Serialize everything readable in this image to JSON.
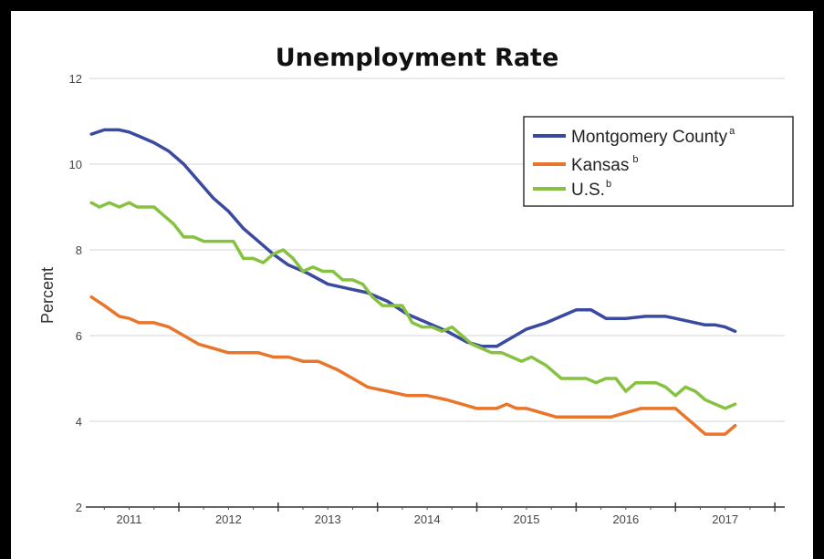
{
  "chart_data": {
    "type": "line",
    "title": "Unemployment Rate",
    "ylabel": "Percent",
    "xlabel": "",
    "ylim": [
      2,
      12
    ],
    "yticks": [
      2,
      4,
      6,
      8,
      10,
      12
    ],
    "xlim": [
      2010.6,
      2017.6
    ],
    "xticks": [
      2011,
      2012,
      2013,
      2014,
      2015,
      2016,
      2017
    ],
    "year_labels": [
      "2011",
      "2012",
      "2013",
      "2014",
      "2015",
      "2016",
      "2017"
    ],
    "grid": true,
    "legend_position": "top-right",
    "series": [
      {
        "name": "Montgomery County",
        "superscript": "a",
        "color": "#3a4aa0",
        "x": [
          2010.62,
          2010.75,
          2010.9,
          2011.0,
          2011.1,
          2011.25,
          2011.4,
          2011.55,
          2011.7,
          2011.85,
          2012.0,
          2012.15,
          2012.3,
          2012.45,
          2012.6,
          2012.8,
          2013.0,
          2013.2,
          2013.4,
          2013.6,
          2013.8,
          2014.0,
          2014.2,
          2014.4,
          2014.55,
          2014.7,
          2014.85,
          2015.0,
          2015.2,
          2015.4,
          2015.5,
          2015.65,
          2015.8,
          2016.0,
          2016.2,
          2016.4,
          2016.5,
          2016.6,
          2016.7,
          2016.8,
          2016.9,
          2017.0,
          2017.1
        ],
        "y": [
          10.7,
          10.8,
          10.8,
          10.75,
          10.65,
          10.5,
          10.3,
          10.0,
          9.6,
          9.2,
          8.9,
          8.5,
          8.2,
          7.9,
          7.65,
          7.45,
          7.2,
          7.1,
          7.0,
          6.8,
          6.5,
          6.3,
          6.1,
          5.85,
          5.75,
          5.75,
          5.95,
          6.15,
          6.3,
          6.5,
          6.6,
          6.6,
          6.4,
          6.4,
          6.45,
          6.45,
          6.4,
          6.35,
          6.3,
          6.25,
          6.25,
          6.2,
          6.1
        ]
      },
      {
        "name": "Kansas",
        "superscript": "b",
        "color": "#e8752a",
        "x": [
          2010.62,
          2010.75,
          2010.9,
          2011.0,
          2011.1,
          2011.25,
          2011.4,
          2011.55,
          2011.7,
          2011.85,
          2012.0,
          2012.15,
          2012.3,
          2012.45,
          2012.6,
          2012.75,
          2012.9,
          2013.0,
          2013.1,
          2013.25,
          2013.4,
          2013.6,
          2013.8,
          2014.0,
          2014.2,
          2014.35,
          2014.5,
          2014.7,
          2014.8,
          2014.9,
          2015.0,
          2015.15,
          2015.3,
          2015.5,
          2015.7,
          2015.85,
          2016.0,
          2016.15,
          2016.3,
          2016.4,
          2016.5,
          2016.6,
          2016.7,
          2016.8,
          2016.9,
          2017.0,
          2017.1
        ],
        "y": [
          6.9,
          6.7,
          6.45,
          6.4,
          6.3,
          6.3,
          6.2,
          6.0,
          5.8,
          5.7,
          5.6,
          5.6,
          5.6,
          5.5,
          5.5,
          5.4,
          5.4,
          5.3,
          5.2,
          5.0,
          4.8,
          4.7,
          4.6,
          4.6,
          4.5,
          4.4,
          4.3,
          4.3,
          4.4,
          4.3,
          4.3,
          4.2,
          4.1,
          4.1,
          4.1,
          4.1,
          4.2,
          4.3,
          4.3,
          4.3,
          4.3,
          4.1,
          3.9,
          3.7,
          3.7,
          3.7,
          3.9
        ]
      },
      {
        "name": "U.S.",
        "superscript": "b",
        "color": "#86c240",
        "x": [
          2010.62,
          2010.7,
          2010.8,
          2010.9,
          2011.0,
          2011.08,
          2011.16,
          2011.25,
          2011.35,
          2011.45,
          2011.55,
          2011.65,
          2011.75,
          2011.85,
          2011.95,
          2012.05,
          2012.15,
          2012.25,
          2012.35,
          2012.45,
          2012.55,
          2012.65,
          2012.75,
          2012.85,
          2012.95,
          2013.05,
          2013.15,
          2013.25,
          2013.35,
          2013.45,
          2013.55,
          2013.65,
          2013.75,
          2013.85,
          2013.95,
          2014.05,
          2014.15,
          2014.25,
          2014.35,
          2014.45,
          2014.55,
          2014.65,
          2014.75,
          2014.85,
          2014.95,
          2015.05,
          2015.2,
          2015.35,
          2015.5,
          2015.6,
          2015.7,
          2015.8,
          2015.9,
          2016.0,
          2016.1,
          2016.2,
          2016.3,
          2016.4,
          2016.5,
          2016.6,
          2016.7,
          2016.8,
          2016.9,
          2017.0,
          2017.1
        ],
        "y": [
          9.1,
          9.0,
          9.1,
          9.0,
          9.1,
          9.0,
          9.0,
          9.0,
          8.8,
          8.6,
          8.3,
          8.3,
          8.2,
          8.2,
          8.2,
          8.2,
          7.8,
          7.8,
          7.7,
          7.9,
          8.0,
          7.8,
          7.5,
          7.6,
          7.5,
          7.5,
          7.3,
          7.3,
          7.2,
          6.9,
          6.7,
          6.7,
          6.7,
          6.3,
          6.2,
          6.2,
          6.1,
          6.2,
          6.0,
          5.8,
          5.7,
          5.6,
          5.6,
          5.5,
          5.4,
          5.5,
          5.3,
          5.0,
          5.0,
          5.0,
          4.9,
          5.0,
          5.0,
          4.7,
          4.9,
          4.9,
          4.9,
          4.8,
          4.6,
          4.8,
          4.7,
          4.5,
          4.4,
          4.3,
          4.4
        ]
      }
    ]
  }
}
